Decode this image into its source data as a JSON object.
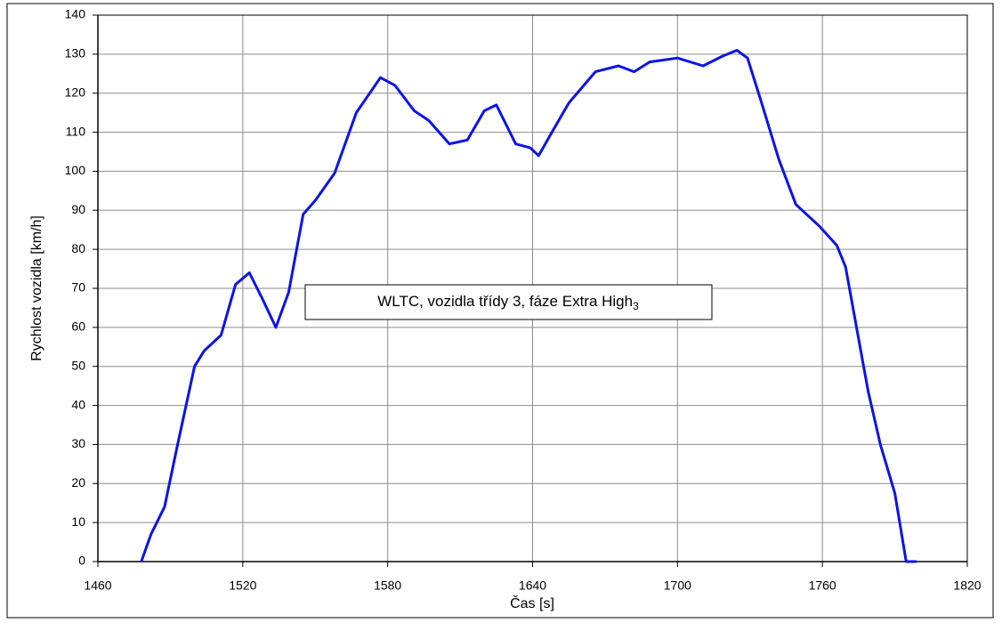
{
  "chart_data": {
    "type": "line",
    "x_label": "Čas [s]",
    "y_label": "Rychlost vozidla [km/h]",
    "annotation": "WLTC, vozidla třídy 3, fáze Extra High",
    "annotation_subscript": "3",
    "xlim": [
      1460,
      1820
    ],
    "xticks": [
      1460,
      1520,
      1580,
      1640,
      1700,
      1760,
      1820
    ],
    "ylim": [
      0,
      140
    ],
    "yticks": [
      0,
      10,
      20,
      30,
      40,
      50,
      60,
      70,
      80,
      90,
      100,
      110,
      120,
      130,
      140
    ],
    "grid": true,
    "series": [
      {
        "color": "#0a14e6",
        "x": [
          1478,
          1482,
          1487.6,
          1493,
          1500,
          1504,
          1511,
          1517,
          1522.7,
          1528,
          1533.7,
          1539,
          1545,
          1550,
          1558,
          1567,
          1577,
          1583,
          1591,
          1597,
          1605.6,
          1613,
          1620,
          1625,
          1633,
          1639,
          1642.5,
          1648,
          1655,
          1666,
          1675.6,
          1682,
          1688.5,
          1700,
          1710.6,
          1718.7,
          1724.6,
          1729,
          1734.6,
          1742,
          1749,
          1758.6,
          1766,
          1769.6,
          1775,
          1779,
          1784,
          1790,
          1794.7,
          1799
        ],
        "values": [
          0,
          7,
          14,
          30,
          50,
          54,
          58,
          71,
          74,
          67.5,
          60,
          69,
          89,
          92.5,
          99.5,
          115,
          124,
          122,
          115.5,
          113,
          107,
          108,
          115.5,
          117,
          107,
          106,
          104,
          110,
          117.5,
          125.5,
          127,
          125.5,
          128,
          129,
          127,
          129.5,
          131,
          129,
          118,
          103,
          91.5,
          86,
          81,
          75.5,
          57,
          43.5,
          30,
          17.5,
          0,
          0
        ]
      }
    ]
  }
}
